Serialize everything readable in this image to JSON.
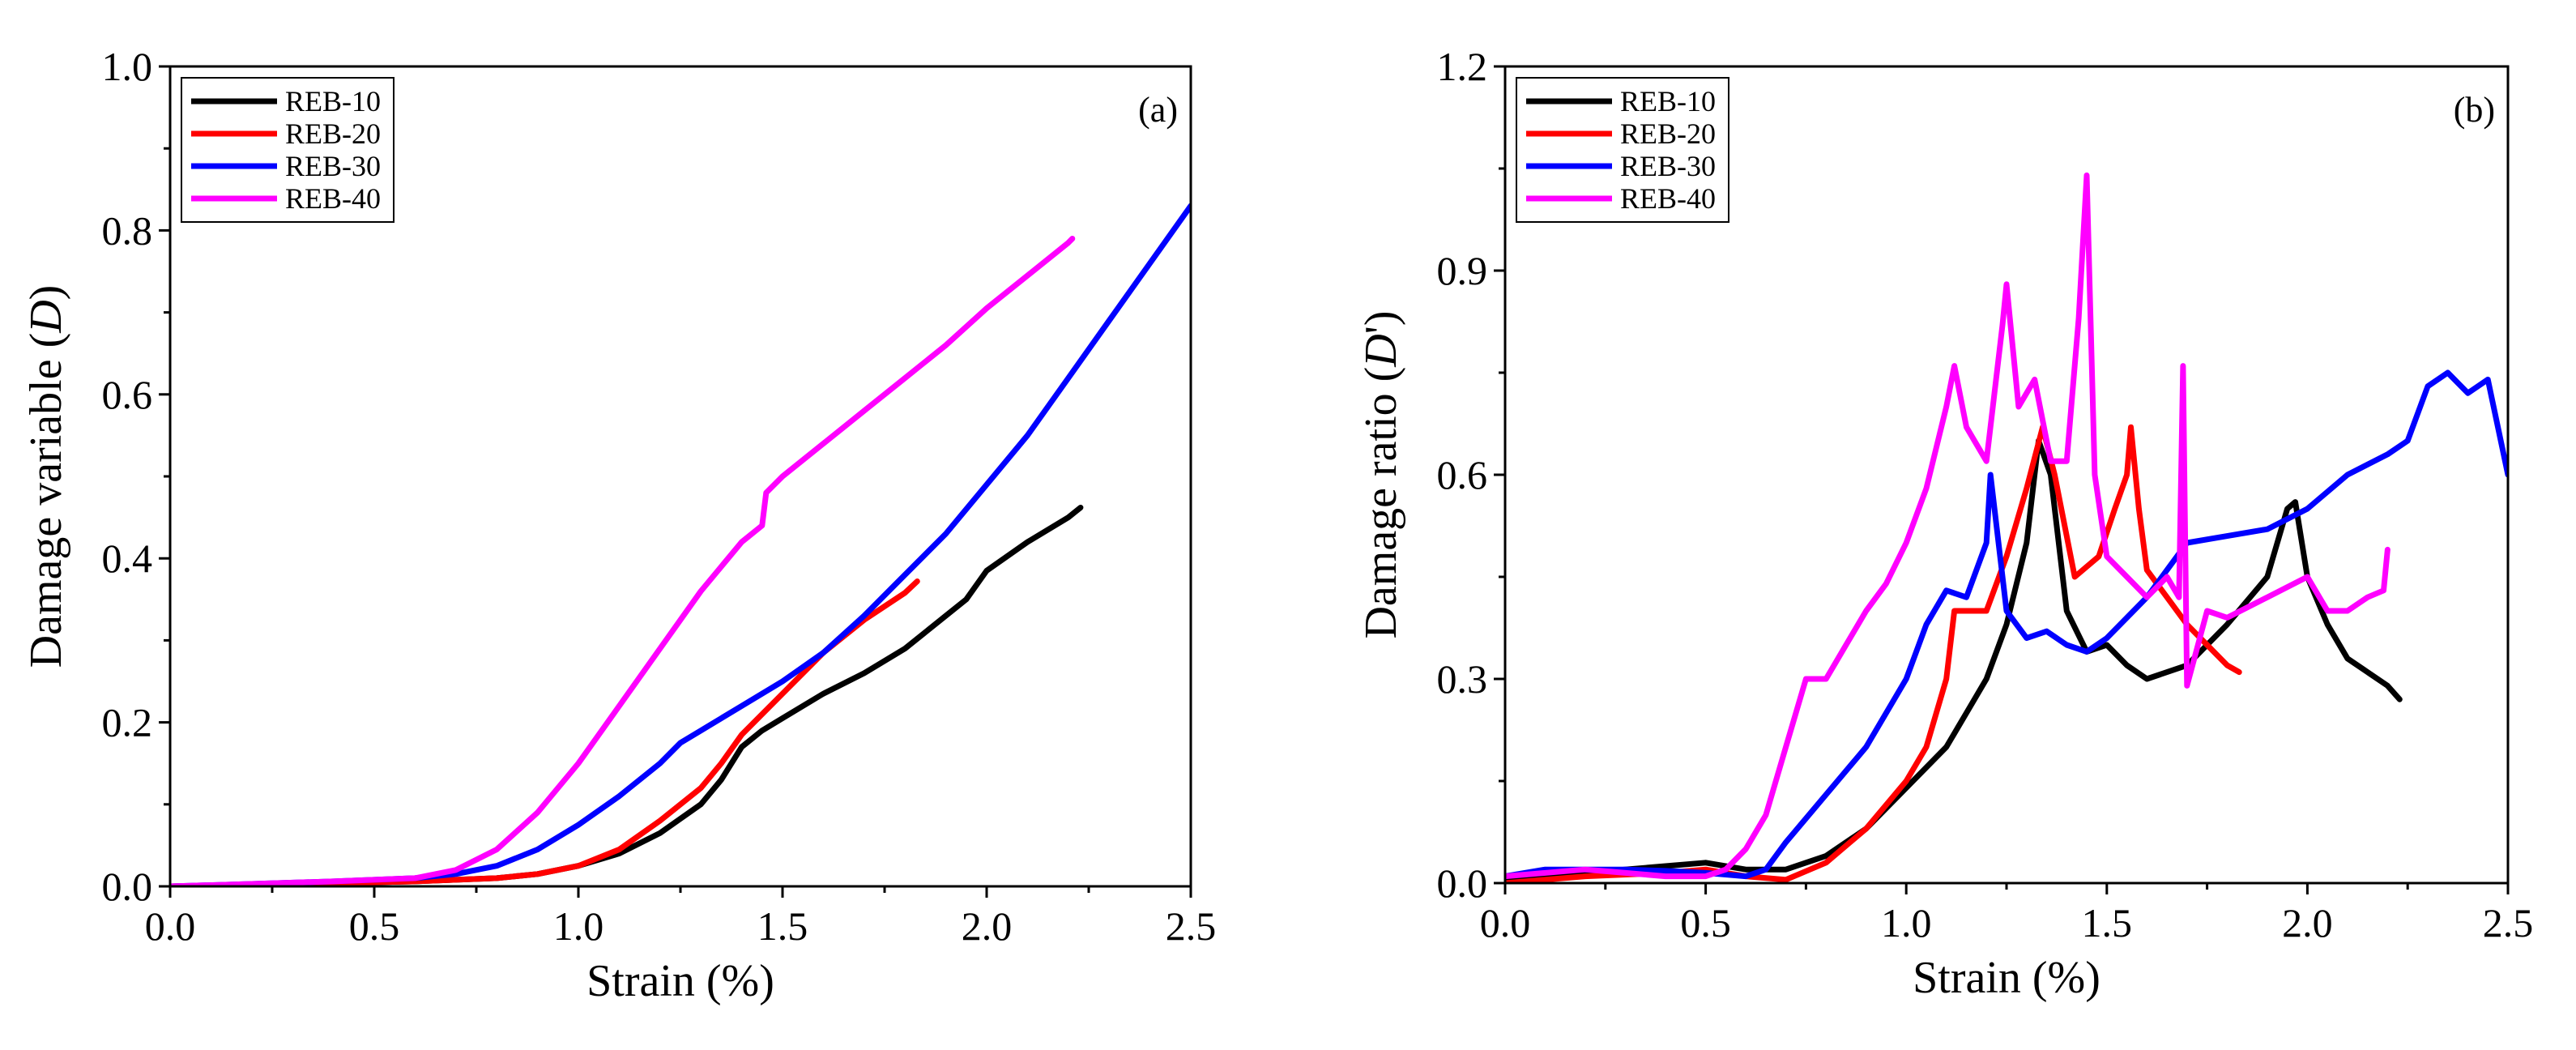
{
  "chart_data": [
    {
      "type": "line",
      "panel_label": "(a)",
      "xlabel": "Strain (%)",
      "ylabel_prefix": "Damage variable (",
      "ylabel_symbol": "D",
      "ylabel_suffix": ")",
      "xlim": [
        0,
        2.5
      ],
      "ylim": [
        0,
        1.0
      ],
      "xticks": [
        0.0,
        0.5,
        1.0,
        1.5,
        2.0,
        2.5
      ],
      "xtick_labels": [
        "0.0",
        "0.5",
        "1.0",
        "1.5",
        "2.0",
        "2.5"
      ],
      "yticks": [
        0.0,
        0.2,
        0.4,
        0.6,
        0.8,
        1.0
      ],
      "ytick_labels": [
        "0.0",
        "0.2",
        "0.4",
        "0.6",
        "0.8",
        "1.0"
      ],
      "legend_position": "top-left",
      "series": [
        {
          "name": "REB-10",
          "color": "#000000",
          "points": [
            [
              0,
              0
            ],
            [
              0.2,
              0.002
            ],
            [
              0.4,
              0.004
            ],
            [
              0.6,
              0.006
            ],
            [
              0.8,
              0.01
            ],
            [
              0.9,
              0.015
            ],
            [
              1.0,
              0.025
            ],
            [
              1.1,
              0.04
            ],
            [
              1.2,
              0.065
            ],
            [
              1.3,
              0.1
            ],
            [
              1.35,
              0.13
            ],
            [
              1.4,
              0.17
            ],
            [
              1.45,
              0.19
            ],
            [
              1.5,
              0.205
            ],
            [
              1.6,
              0.235
            ],
            [
              1.7,
              0.26
            ],
            [
              1.8,
              0.29
            ],
            [
              1.9,
              0.33
            ],
            [
              1.95,
              0.35
            ],
            [
              2.0,
              0.385
            ],
            [
              2.1,
              0.42
            ],
            [
              2.2,
              0.45
            ],
            [
              2.23,
              0.462
            ]
          ]
        },
        {
          "name": "REB-20",
          "color": "#ff0000",
          "points": [
            [
              0,
              0
            ],
            [
              0.2,
              0.002
            ],
            [
              0.4,
              0.004
            ],
            [
              0.6,
              0.006
            ],
            [
              0.8,
              0.01
            ],
            [
              0.9,
              0.015
            ],
            [
              1.0,
              0.025
            ],
            [
              1.1,
              0.045
            ],
            [
              1.2,
              0.08
            ],
            [
              1.3,
              0.12
            ],
            [
              1.35,
              0.15
            ],
            [
              1.4,
              0.185
            ],
            [
              1.5,
              0.235
            ],
            [
              1.55,
              0.26
            ],
            [
              1.6,
              0.285
            ],
            [
              1.7,
              0.325
            ],
            [
              1.8,
              0.358
            ],
            [
              1.83,
              0.372
            ]
          ]
        },
        {
          "name": "REB-30",
          "color": "#0000ff",
          "points": [
            [
              0,
              0
            ],
            [
              0.2,
              0.003
            ],
            [
              0.4,
              0.006
            ],
            [
              0.6,
              0.01
            ],
            [
              0.7,
              0.015
            ],
            [
              0.8,
              0.025
            ],
            [
              0.9,
              0.045
            ],
            [
              1.0,
              0.075
            ],
            [
              1.1,
              0.11
            ],
            [
              1.2,
              0.15
            ],
            [
              1.25,
              0.175
            ],
            [
              1.3,
              0.19
            ],
            [
              1.4,
              0.22
            ],
            [
              1.5,
              0.25
            ],
            [
              1.6,
              0.285
            ],
            [
              1.7,
              0.33
            ],
            [
              1.8,
              0.38
            ],
            [
              1.9,
              0.43
            ],
            [
              2.0,
              0.49
            ],
            [
              2.1,
              0.55
            ],
            [
              2.2,
              0.62
            ],
            [
              2.3,
              0.69
            ],
            [
              2.4,
              0.76
            ],
            [
              2.5,
              0.83
            ]
          ]
        },
        {
          "name": "REB-40",
          "color": "#ff00ff",
          "points": [
            [
              0,
              0
            ],
            [
              0.2,
              0.003
            ],
            [
              0.4,
              0.006
            ],
            [
              0.6,
              0.01
            ],
            [
              0.7,
              0.02
            ],
            [
              0.8,
              0.045
            ],
            [
              0.9,
              0.09
            ],
            [
              1.0,
              0.15
            ],
            [
              1.1,
              0.22
            ],
            [
              1.2,
              0.29
            ],
            [
              1.3,
              0.36
            ],
            [
              1.4,
              0.42
            ],
            [
              1.45,
              0.44
            ],
            [
              1.46,
              0.48
            ],
            [
              1.5,
              0.5
            ],
            [
              1.6,
              0.54
            ],
            [
              1.7,
              0.58
            ],
            [
              1.8,
              0.62
            ],
            [
              1.9,
              0.66
            ],
            [
              2.0,
              0.705
            ],
            [
              2.1,
              0.745
            ],
            [
              2.2,
              0.785
            ],
            [
              2.21,
              0.79
            ]
          ]
        }
      ]
    },
    {
      "type": "line",
      "panel_label": "(b)",
      "xlabel": "Strain (%)",
      "ylabel_prefix": "Damage ratio (",
      "ylabel_symbol": "D",
      "ylabel_suffix": "')",
      "xlim": [
        0,
        2.5
      ],
      "ylim": [
        0,
        1.2
      ],
      "xticks": [
        0.0,
        0.5,
        1.0,
        1.5,
        2.0,
        2.5
      ],
      "xtick_labels": [
        "0.0",
        "0.5",
        "1.0",
        "1.5",
        "2.0",
        "2.5"
      ],
      "yticks": [
        0.0,
        0.3,
        0.6,
        0.9,
        1.2
      ],
      "ytick_labels": [
        "0.0",
        "0.3",
        "0.6",
        "0.9",
        "1.2"
      ],
      "legend_position": "top-left",
      "series": [
        {
          "name": "REB-10",
          "color": "#000000",
          "points": [
            [
              0,
              0.005
            ],
            [
              0.2,
              0.015
            ],
            [
              0.4,
              0.025
            ],
            [
              0.5,
              0.03
            ],
            [
              0.6,
              0.02
            ],
            [
              0.7,
              0.02
            ],
            [
              0.8,
              0.04
            ],
            [
              0.9,
              0.08
            ],
            [
              1.0,
              0.14
            ],
            [
              1.1,
              0.2
            ],
            [
              1.15,
              0.25
            ],
            [
              1.2,
              0.3
            ],
            [
              1.25,
              0.38
            ],
            [
              1.3,
              0.5
            ],
            [
              1.33,
              0.65
            ],
            [
              1.36,
              0.6
            ],
            [
              1.4,
              0.4
            ],
            [
              1.45,
              0.34
            ],
            [
              1.5,
              0.35
            ],
            [
              1.55,
              0.32
            ],
            [
              1.6,
              0.3
            ],
            [
              1.7,
              0.32
            ],
            [
              1.8,
              0.38
            ],
            [
              1.9,
              0.45
            ],
            [
              1.95,
              0.55
            ],
            [
              1.97,
              0.56
            ],
            [
              2.0,
              0.45
            ],
            [
              2.05,
              0.38
            ],
            [
              2.1,
              0.33
            ],
            [
              2.2,
              0.29
            ],
            [
              2.23,
              0.27
            ]
          ]
        },
        {
          "name": "REB-20",
          "color": "#ff0000",
          "points": [
            [
              0,
              0.0
            ],
            [
              0.2,
              0.01
            ],
            [
              0.4,
              0.015
            ],
            [
              0.5,
              0.02
            ],
            [
              0.6,
              0.01
            ],
            [
              0.7,
              0.005
            ],
            [
              0.8,
              0.03
            ],
            [
              0.9,
              0.08
            ],
            [
              1.0,
              0.15
            ],
            [
              1.05,
              0.2
            ],
            [
              1.1,
              0.3
            ],
            [
              1.12,
              0.4
            ],
            [
              1.2,
              0.4
            ],
            [
              1.25,
              0.48
            ],
            [
              1.3,
              0.58
            ],
            [
              1.34,
              0.67
            ],
            [
              1.37,
              0.6
            ],
            [
              1.42,
              0.45
            ],
            [
              1.48,
              0.48
            ],
            [
              1.52,
              0.55
            ],
            [
              1.55,
              0.6
            ],
            [
              1.56,
              0.67
            ],
            [
              1.58,
              0.55
            ],
            [
              1.6,
              0.46
            ],
            [
              1.65,
              0.42
            ],
            [
              1.7,
              0.38
            ],
            [
              1.75,
              0.35
            ],
            [
              1.8,
              0.32
            ],
            [
              1.83,
              0.31
            ]
          ]
        },
        {
          "name": "REB-30",
          "color": "#0000ff",
          "points": [
            [
              0,
              0.01
            ],
            [
              0.1,
              0.02
            ],
            [
              0.2,
              0.02
            ],
            [
              0.3,
              0.02
            ],
            [
              0.4,
              0.018
            ],
            [
              0.5,
              0.015
            ],
            [
              0.6,
              0.01
            ],
            [
              0.65,
              0.02
            ],
            [
              0.7,
              0.06
            ],
            [
              0.8,
              0.13
            ],
            [
              0.9,
              0.2
            ],
            [
              1.0,
              0.3
            ],
            [
              1.05,
              0.38
            ],
            [
              1.1,
              0.43
            ],
            [
              1.15,
              0.42
            ],
            [
              1.2,
              0.5
            ],
            [
              1.21,
              0.6
            ],
            [
              1.23,
              0.5
            ],
            [
              1.25,
              0.4
            ],
            [
              1.3,
              0.36
            ],
            [
              1.35,
              0.37
            ],
            [
              1.4,
              0.35
            ],
            [
              1.45,
              0.34
            ],
            [
              1.5,
              0.36
            ],
            [
              1.6,
              0.42
            ],
            [
              1.7,
              0.5
            ],
            [
              1.8,
              0.51
            ],
            [
              1.9,
              0.52
            ],
            [
              2.0,
              0.55
            ],
            [
              2.1,
              0.6
            ],
            [
              2.2,
              0.63
            ],
            [
              2.25,
              0.65
            ],
            [
              2.3,
              0.73
            ],
            [
              2.35,
              0.75
            ],
            [
              2.4,
              0.72
            ],
            [
              2.45,
              0.74
            ],
            [
              2.5,
              0.6
            ]
          ]
        },
        {
          "name": "REB-40",
          "color": "#ff00ff",
          "points": [
            [
              0,
              0.01
            ],
            [
              0.2,
              0.02
            ],
            [
              0.3,
              0.015
            ],
            [
              0.4,
              0.01
            ],
            [
              0.5,
              0.01
            ],
            [
              0.55,
              0.02
            ],
            [
              0.6,
              0.05
            ],
            [
              0.65,
              0.1
            ],
            [
              0.7,
              0.2
            ],
            [
              0.75,
              0.3
            ],
            [
              0.8,
              0.3
            ],
            [
              0.85,
              0.35
            ],
            [
              0.9,
              0.4
            ],
            [
              0.95,
              0.44
            ],
            [
              1.0,
              0.5
            ],
            [
              1.05,
              0.58
            ],
            [
              1.1,
              0.7
            ],
            [
              1.12,
              0.76
            ],
            [
              1.15,
              0.67
            ],
            [
              1.2,
              0.62
            ],
            [
              1.24,
              0.82
            ],
            [
              1.25,
              0.88
            ],
            [
              1.28,
              0.7
            ],
            [
              1.32,
              0.74
            ],
            [
              1.36,
              0.62
            ],
            [
              1.4,
              0.62
            ],
            [
              1.43,
              0.83
            ],
            [
              1.45,
              1.04
            ],
            [
              1.47,
              0.6
            ],
            [
              1.5,
              0.48
            ],
            [
              1.55,
              0.45
            ],
            [
              1.6,
              0.42
            ],
            [
              1.65,
              0.45
            ],
            [
              1.68,
              0.42
            ],
            [
              1.69,
              0.76
            ],
            [
              1.7,
              0.29
            ],
            [
              1.75,
              0.4
            ],
            [
              1.8,
              0.39
            ],
            [
              1.9,
              0.42
            ],
            [
              2.0,
              0.45
            ],
            [
              2.05,
              0.4
            ],
            [
              2.1,
              0.4
            ],
            [
              2.15,
              0.42
            ],
            [
              2.19,
              0.43
            ],
            [
              2.2,
              0.49
            ]
          ]
        }
      ]
    }
  ]
}
